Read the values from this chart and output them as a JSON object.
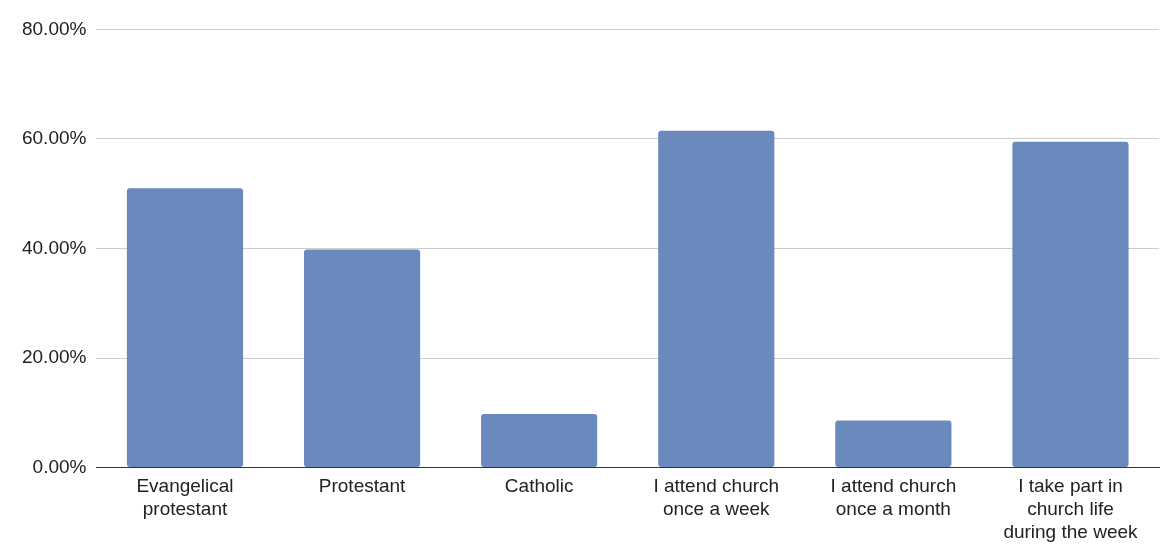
{
  "chart_data": {
    "type": "bar",
    "categories": [
      "Evangelical protestant",
      "Protestant",
      "Catholic",
      "I attend church once a week",
      "I attend church once a month",
      "I take part in church life during the week"
    ],
    "values": [
      51.0,
      39.8,
      9.8,
      61.5,
      8.6,
      59.5
    ],
    "color": "#6a89bd",
    "ylim": [
      0,
      80
    ],
    "yticks": [
      {
        "value": 0,
        "label": "0.00%"
      },
      {
        "value": 20,
        "label": "20.00%"
      },
      {
        "value": 40,
        "label": "40.00%"
      },
      {
        "value": 60,
        "label": "60.00%"
      },
      {
        "value": 80,
        "label": "80.00%"
      }
    ],
    "grid": "y",
    "legend": false
  }
}
